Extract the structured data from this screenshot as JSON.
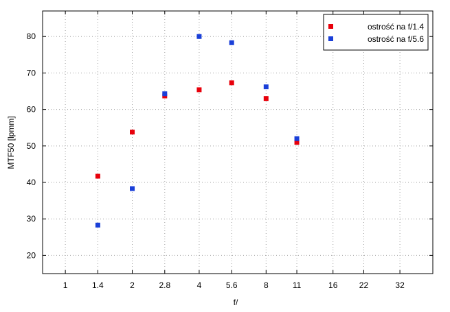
{
  "chart_data": {
    "type": "scatter",
    "title": "",
    "xlabel": "f/",
    "ylabel": "MTF50 [lpmm]",
    "x_scale": "log2",
    "categories": [
      "1",
      "1.4",
      "2",
      "2.8",
      "4",
      "5.6",
      "8",
      "11",
      "16",
      "22",
      "32"
    ],
    "x_ticks": [
      1,
      1.4,
      2,
      2.8,
      4,
      5.6,
      8,
      11,
      16,
      22,
      32
    ],
    "xlim": [
      0.79,
      45
    ],
    "ylim": [
      15,
      87
    ],
    "y_ticks": [
      20,
      30,
      40,
      50,
      60,
      70,
      80
    ],
    "grid": true,
    "legend_position": "top-right",
    "series": [
      {
        "name": "ostrość na f/1.4",
        "color": "#e8000b",
        "x": [
          1.4,
          2,
          2.8,
          4,
          5.6,
          8,
          11
        ],
        "values": [
          41.7,
          53.8,
          63.7,
          65.4,
          67.3,
          63.0,
          51.0
        ]
      },
      {
        "name": "ostrość na f/5.6",
        "color": "#1a3fd8",
        "x": [
          1.4,
          2,
          2.8,
          4,
          5.6,
          8,
          11
        ],
        "values": [
          28.3,
          38.3,
          64.3,
          80.0,
          78.3,
          66.2,
          52.0
        ]
      }
    ]
  }
}
